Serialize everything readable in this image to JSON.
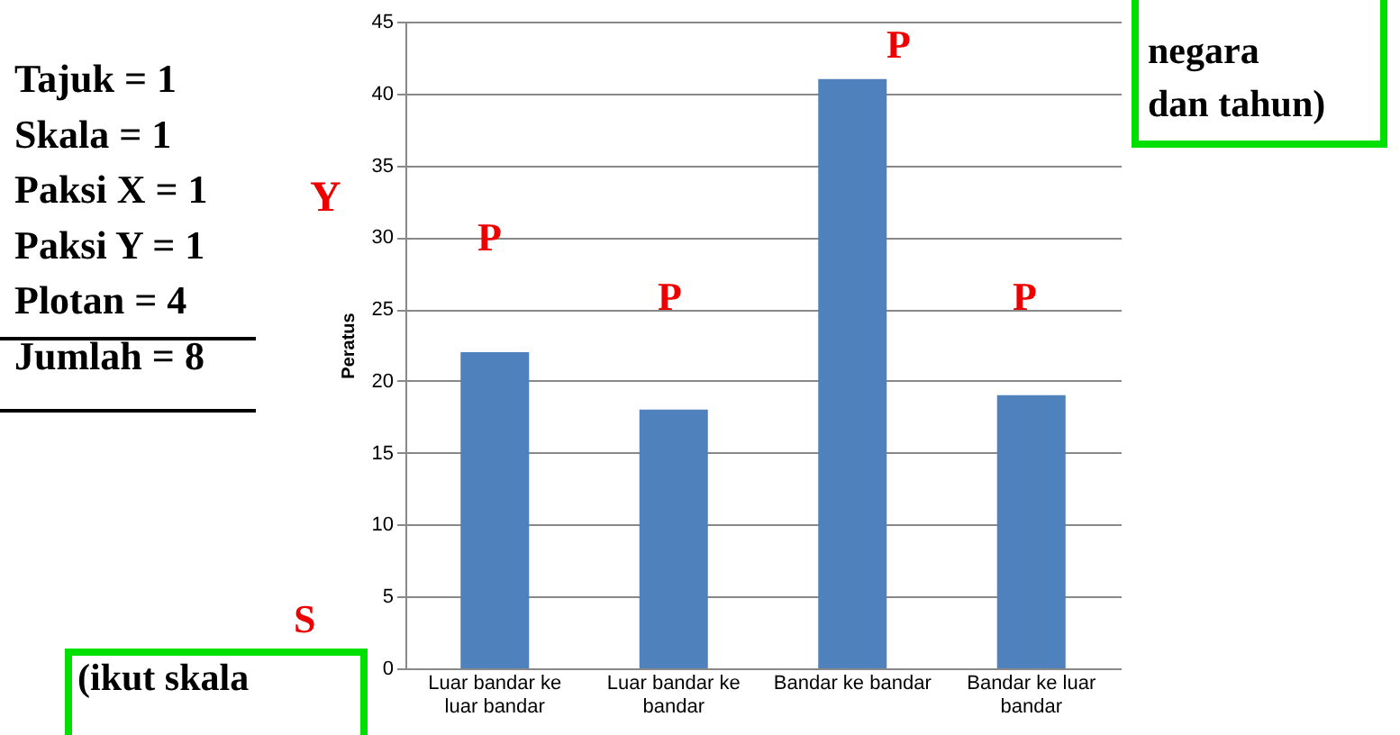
{
  "chart_data": {
    "type": "bar",
    "ylabel": "Peratus",
    "categories": [
      "Luar bandar ke luar bandar",
      "Luar bandar ke bandar",
      "Bandar ke bandar",
      "Bandar ke luar bandar"
    ],
    "values": [
      22,
      18,
      41,
      19
    ],
    "color": "#4f81bd",
    "ylim": [
      0,
      45
    ],
    "yticks": [
      0,
      5,
      10,
      15,
      20,
      25,
      30,
      35,
      40,
      45
    ],
    "grid": "y",
    "annotations": [
      "Tajuk = 1\nSkala =  1\nPaksi X = 1\nPaksi Y = 1\nPlotan = 4\nJumlah = 8",
      "Y",
      "P",
      "P",
      "P",
      "P",
      "S",
      "(ikut skala",
      "negara\ndan tahun)"
    ]
  }
}
